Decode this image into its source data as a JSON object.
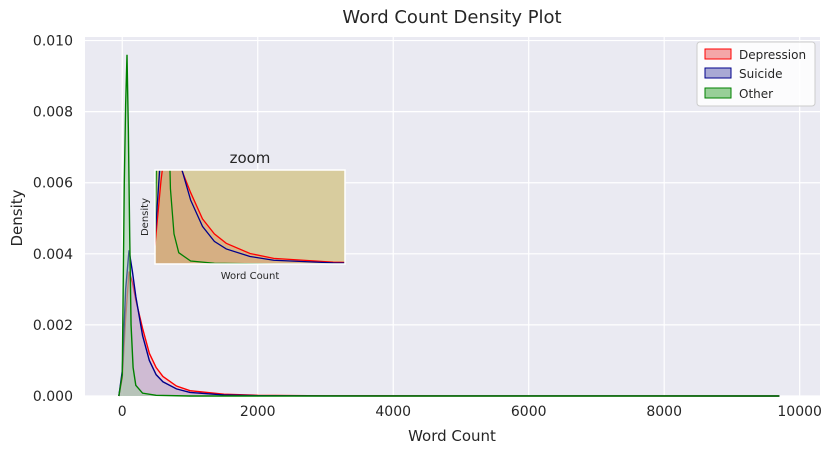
{
  "chart_data": {
    "type": "area",
    "title": "Word Count Density Plot",
    "xlabel": "Word Count",
    "ylabel": "Density",
    "xlim": [
      -550,
      10300
    ],
    "ylim": [
      0,
      0.0101
    ],
    "x_ticks": [
      0,
      2000,
      4000,
      6000,
      8000,
      10000
    ],
    "y_ticks": [
      0.0,
      0.002,
      0.004,
      0.006,
      0.008,
      0.01
    ],
    "x_tick_labels": [
      "0",
      "2000",
      "4000",
      "6000",
      "8000",
      "10000"
    ],
    "y_tick_labels": [
      "0.000",
      "0.002",
      "0.004",
      "0.006",
      "0.008",
      "0.010"
    ],
    "grid": true,
    "legend_position": "top-right",
    "series": [
      {
        "name": "Depression",
        "color": "#ff0000",
        "fill": "#f4a6a8",
        "points": [
          [
            -50,
            0
          ],
          [
            0,
            0.0005
          ],
          [
            50,
            0.0022
          ],
          [
            100,
            0.0035
          ],
          [
            150,
            0.0032
          ],
          [
            200,
            0.0027
          ],
          [
            300,
            0.0019
          ],
          [
            400,
            0.0012
          ],
          [
            500,
            0.0008
          ],
          [
            600,
            0.00055
          ],
          [
            800,
            0.00028
          ],
          [
            1000,
            0.00015
          ],
          [
            1500,
            5e-05
          ],
          [
            2000,
            2e-05
          ],
          [
            3000,
            5e-06
          ],
          [
            5000,
            1e-06
          ],
          [
            9700,
            0
          ]
        ]
      },
      {
        "name": "Suicide",
        "color": "#00008b",
        "fill": "#a9a9d4",
        "points": [
          [
            -50,
            0
          ],
          [
            0,
            0.0007
          ],
          [
            50,
            0.003
          ],
          [
            100,
            0.0041
          ],
          [
            150,
            0.0035
          ],
          [
            200,
            0.0028
          ],
          [
            300,
            0.0017
          ],
          [
            400,
            0.001
          ],
          [
            500,
            0.0006
          ],
          [
            600,
            0.0004
          ],
          [
            800,
            0.0002
          ],
          [
            1000,
            0.0001
          ],
          [
            1500,
            3e-05
          ],
          [
            2000,
            1e-05
          ],
          [
            3000,
            3e-06
          ],
          [
            5000,
            1e-06
          ],
          [
            9700,
            0
          ]
        ]
      },
      {
        "name": "Other",
        "color": "#008000",
        "fill": "#98cf98",
        "points": [
          [
            -50,
            0
          ],
          [
            0,
            0.0006
          ],
          [
            30,
            0.006
          ],
          [
            50,
            0.0082
          ],
          [
            70,
            0.0096
          ],
          [
            90,
            0.0075
          ],
          [
            110,
            0.0045
          ],
          [
            130,
            0.002
          ],
          [
            160,
            0.0008
          ],
          [
            200,
            0.0003
          ],
          [
            300,
            8e-05
          ],
          [
            500,
            2e-05
          ],
          [
            1000,
            0
          ],
          [
            9700,
            0
          ]
        ]
      }
    ],
    "inset": {
      "title": "zoom",
      "xlabel": "Word Count",
      "ylabel": "Density",
      "xlim": [
        0,
        1600
      ],
      "ylim": [
        0,
        0.0025
      ]
    }
  }
}
